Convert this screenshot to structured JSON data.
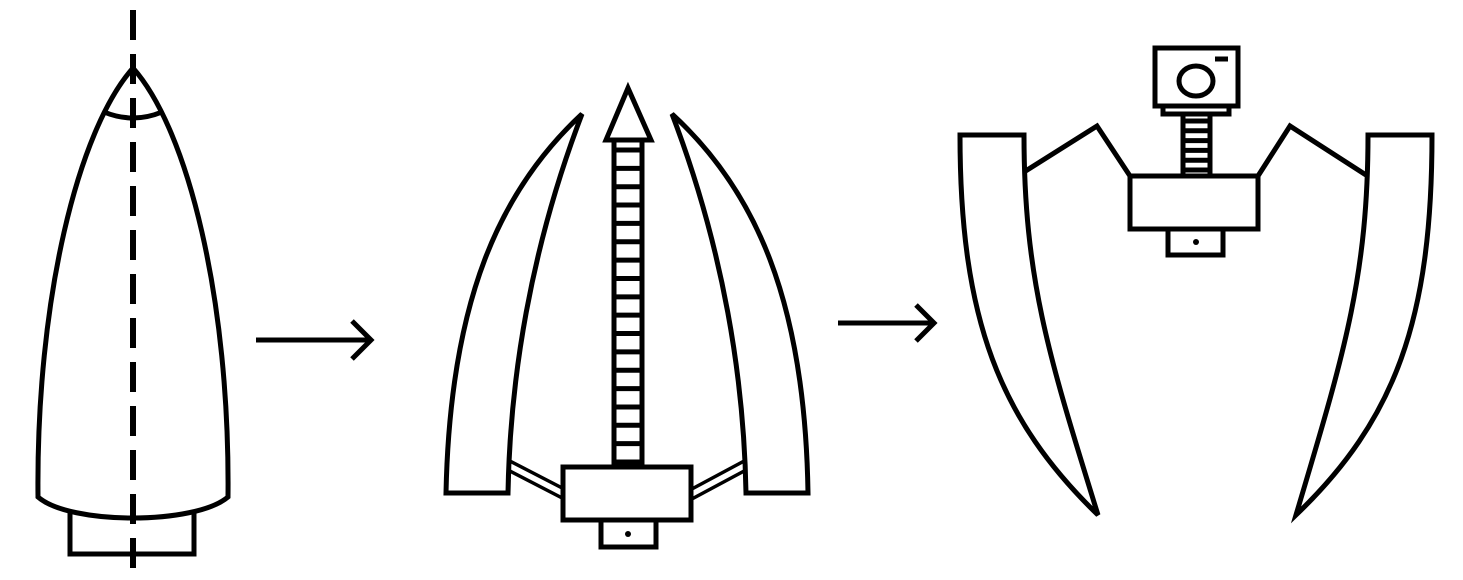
{
  "diagram": {
    "description_stages": [
      "stowed",
      "deploying",
      "deployed"
    ],
    "colors": {
      "stroke": "#000000",
      "background": "#ffffff"
    },
    "arrows": 2,
    "rack_rungs": 18,
    "camera_stem_rungs": 6
  }
}
